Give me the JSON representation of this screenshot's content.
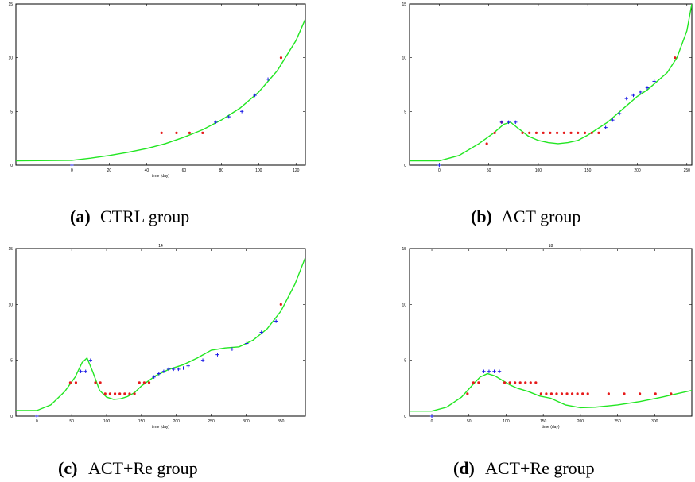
{
  "colors": {
    "model": "#22e622",
    "red_series": "#e61a1a",
    "blue_series": "#1a1ae6",
    "axis": "#000000"
  },
  "chart_data": [
    {
      "type": "scatter",
      "panel_label": "(a)",
      "caption": "CTRL group",
      "title": "",
      "xlabel": "time (day)",
      "ylabel": "",
      "xlim": [
        -30,
        125
      ],
      "ylim": [
        0,
        15
      ],
      "xticks": [
        0,
        20,
        40,
        60,
        80,
        100,
        120
      ],
      "yticks": [
        0,
        5,
        10,
        15
      ],
      "model": {
        "x": [
          -30,
          0,
          10,
          20,
          30,
          40,
          50,
          60,
          70,
          80,
          90,
          100,
          110,
          120,
          125
        ],
        "y": [
          0.4,
          0.45,
          0.65,
          0.9,
          1.2,
          1.55,
          2.0,
          2.6,
          3.3,
          4.2,
          5.3,
          6.8,
          8.8,
          11.6,
          13.6
        ]
      },
      "series": [
        {
          "marker": "dot",
          "color": "red",
          "x": [
            48,
            56,
            63,
            70,
            112
          ],
          "y": [
            3.0,
            3.0,
            3.0,
            3.0,
            10.0
          ]
        },
        {
          "marker": "plus",
          "color": "blue",
          "x": [
            0,
            77,
            84,
            91,
            98,
            105
          ],
          "y": [
            0,
            4.0,
            4.5,
            5.0,
            6.5,
            8.0
          ]
        }
      ]
    },
    {
      "type": "scatter",
      "panel_label": "(b)",
      "caption": "ACT group",
      "title": "",
      "xlabel": "",
      "ylabel": "",
      "xlim": [
        -30,
        255
      ],
      "ylim": [
        0,
        15
      ],
      "xticks": [
        0,
        50,
        100,
        150,
        200,
        250
      ],
      "yticks": [
        0,
        5,
        10,
        15
      ],
      "model": {
        "x": [
          -30,
          0,
          20,
          40,
          55,
          65,
          72,
          80,
          90,
          100,
          110,
          120,
          130,
          140,
          150,
          160,
          170,
          180,
          190,
          200,
          210,
          220,
          230,
          240,
          250,
          255
        ],
        "y": [
          0.4,
          0.4,
          0.9,
          2.0,
          3.0,
          3.8,
          4.0,
          3.4,
          2.7,
          2.3,
          2.1,
          2.0,
          2.1,
          2.3,
          2.8,
          3.4,
          4.0,
          4.8,
          5.6,
          6.4,
          7.0,
          7.8,
          8.6,
          10.0,
          12.5,
          15.0
        ]
      },
      "series": [
        {
          "marker": "dot",
          "color": "red",
          "x": [
            48,
            56,
            63,
            84,
            91,
            98,
            105,
            112,
            119,
            126,
            133,
            140,
            147,
            154,
            161,
            238
          ],
          "y": [
            2.0,
            3.0,
            4.0,
            3.0,
            3.0,
            3.0,
            3.0,
            3.0,
            3.0,
            3.0,
            3.0,
            3.0,
            3.0,
            3.0,
            3.0,
            10.0
          ]
        },
        {
          "marker": "plus",
          "color": "blue",
          "x": [
            0,
            63,
            70,
            77,
            168,
            175,
            182,
            189,
            196,
            203,
            210,
            217
          ],
          "y": [
            0,
            4.0,
            4.0,
            4.0,
            3.5,
            4.2,
            4.8,
            6.2,
            6.5,
            6.8,
            7.2,
            7.8
          ]
        }
      ]
    },
    {
      "type": "scatter",
      "panel_label": "(c)",
      "caption": "ACT+Re group",
      "title": "14",
      "xlabel": "time (day)",
      "ylabel": "",
      "xlim": [
        -30,
        385
      ],
      "ylim": [
        0,
        15
      ],
      "xticks": [
        0,
        50,
        100,
        150,
        200,
        250,
        300,
        350
      ],
      "yticks": [
        0,
        5,
        10,
        15
      ],
      "model": {
        "x": [
          -30,
          0,
          20,
          40,
          55,
          65,
          72,
          80,
          90,
          100,
          110,
          120,
          130,
          140,
          150,
          170,
          190,
          210,
          230,
          250,
          270,
          290,
          310,
          330,
          350,
          370,
          385
        ],
        "y": [
          0.5,
          0.5,
          1.0,
          2.2,
          3.5,
          4.8,
          5.2,
          4.0,
          2.3,
          1.7,
          1.5,
          1.55,
          1.75,
          2.1,
          2.7,
          3.6,
          4.2,
          4.6,
          5.2,
          5.9,
          6.1,
          6.2,
          6.8,
          7.8,
          9.4,
          11.8,
          14.2
        ]
      },
      "series": [
        {
          "marker": "dot",
          "color": "red",
          "x": [
            48,
            56,
            84,
            91,
            98,
            105,
            112,
            119,
            126,
            133,
            140,
            147,
            154,
            161,
            350
          ],
          "y": [
            3.0,
            3.0,
            3.0,
            3.0,
            2.0,
            2.0,
            2.0,
            2.0,
            2.0,
            2.0,
            2.0,
            3.0,
            3.0,
            3.0,
            10.0
          ]
        },
        {
          "marker": "plus",
          "color": "blue",
          "x": [
            0,
            63,
            70,
            77,
            168,
            175,
            182,
            189,
            196,
            203,
            210,
            217,
            238,
            259,
            280,
            301,
            322,
            343
          ],
          "y": [
            0,
            4.0,
            4.0,
            5.0,
            3.5,
            3.8,
            4.0,
            4.2,
            4.2,
            4.2,
            4.3,
            4.5,
            5.0,
            5.5,
            6.0,
            6.5,
            7.5,
            8.5
          ]
        }
      ]
    },
    {
      "type": "scatter",
      "panel_label": "(d)",
      "caption": "ACT+Re group",
      "title": "18",
      "xlabel": "time (day)",
      "ylabel": "",
      "xlim": [
        -30,
        350
      ],
      "ylim": [
        0,
        15
      ],
      "xticks": [
        0,
        50,
        100,
        150,
        200,
        250,
        300
      ],
      "yticks": [
        0,
        5,
        10,
        15
      ],
      "model": {
        "x": [
          -30,
          0,
          20,
          40,
          55,
          65,
          75,
          85,
          95,
          105,
          115,
          130,
          145,
          160,
          180,
          200,
          220,
          250,
          280,
          310,
          330,
          350
        ],
        "y": [
          0.45,
          0.45,
          0.8,
          1.7,
          2.8,
          3.5,
          3.8,
          3.6,
          3.2,
          2.8,
          2.5,
          2.2,
          1.8,
          1.6,
          1.0,
          0.75,
          0.8,
          1.0,
          1.3,
          1.7,
          2.0,
          2.3
        ]
      },
      "series": [
        {
          "marker": "dot",
          "color": "red",
          "x": [
            48,
            56,
            63,
            98,
            105,
            112,
            119,
            126,
            133,
            140,
            147,
            154,
            161,
            168,
            175,
            182,
            189,
            196,
            203,
            210,
            238,
            259,
            280,
            301,
            322
          ],
          "y": [
            2.0,
            3.0,
            3.0,
            3.0,
            3.0,
            3.0,
            3.0,
            3.0,
            3.0,
            3.0,
            2.0,
            2.0,
            2.0,
            2.0,
            2.0,
            2.0,
            2.0,
            2.0,
            2.0,
            2.0,
            2.0,
            2.0,
            2.0,
            2.0,
            2.0
          ]
        },
        {
          "marker": "plus",
          "color": "blue",
          "x": [
            0,
            70,
            77,
            84,
            91
          ],
          "y": [
            0,
            4.0,
            4.0,
            4.0,
            4.0
          ]
        }
      ]
    }
  ]
}
